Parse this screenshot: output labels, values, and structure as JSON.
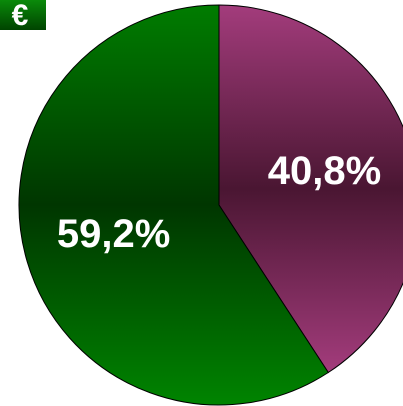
{
  "badge": "€",
  "chart_data": {
    "type": "pie",
    "categories": [
      null,
      null
    ],
    "values": [
      40.8,
      59.2
    ],
    "value_labels": [
      "40,8%",
      "59,2%"
    ],
    "colors": [
      "#8e2e66",
      "#006e00"
    ]
  }
}
